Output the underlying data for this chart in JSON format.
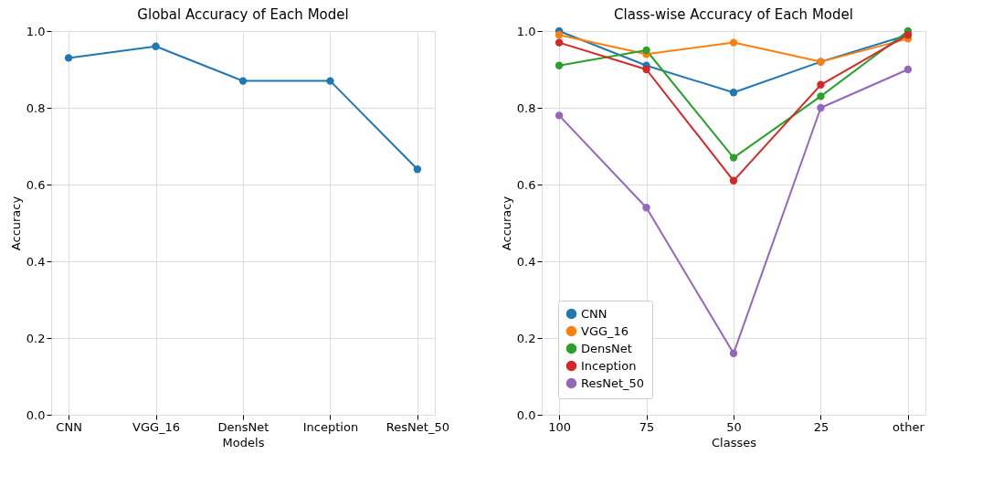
{
  "chart_data": [
    {
      "type": "line",
      "title": "Global Accuracy of Each Model",
      "xlabel": "Models",
      "ylabel": "Accuracy",
      "categories": [
        "CNN",
        "VGG_16",
        "DensNet",
        "Inception",
        "ResNet_50"
      ],
      "series": [
        {
          "color": "#1f77b4",
          "values": [
            0.93,
            0.96,
            0.87,
            0.87,
            0.64
          ]
        }
      ],
      "ylim": [
        0,
        1
      ],
      "yticks": [
        {
          "value": 0,
          "label": "0.0"
        },
        {
          "value": 0.2,
          "label": "0.2"
        },
        {
          "value": 0.4,
          "label": "0.4"
        },
        {
          "value": 0.6,
          "label": "0.6"
        },
        {
          "value": 0.8,
          "label": "0.8"
        },
        {
          "value": 1,
          "label": "1.0"
        }
      ],
      "grid": true,
      "marker": "circle",
      "line_style": "solid"
    },
    {
      "type": "line",
      "title": "Class-wise Accuracy of Each Model",
      "xlabel": "Classes",
      "ylabel": "Accuracy",
      "categories": [
        "100",
        "75",
        "50",
        "25",
        "other"
      ],
      "series": [
        {
          "name": "CNN",
          "color": "#1f77b4",
          "values": [
            1.0,
            0.91,
            0.84,
            0.92,
            0.99
          ]
        },
        {
          "name": "VGG_16",
          "color": "#ff7f0e",
          "values": [
            0.99,
            0.94,
            0.97,
            0.92,
            0.98
          ]
        },
        {
          "name": "DensNet",
          "color": "#2ca02c",
          "values": [
            0.91,
            0.95,
            0.67,
            0.83,
            1.0
          ]
        },
        {
          "name": "Inception",
          "color": "#d62728",
          "values": [
            0.97,
            0.9,
            0.61,
            0.86,
            0.99
          ]
        },
        {
          "name": "ResNet_50",
          "color": "#9467bd",
          "values": [
            0.78,
            0.54,
            0.16,
            0.8,
            0.9
          ]
        }
      ],
      "ylim": [
        0,
        1
      ],
      "yticks": [
        {
          "value": 0,
          "label": "0.0"
        },
        {
          "value": 0.2,
          "label": "0.2"
        },
        {
          "value": 0.4,
          "label": "0.4"
        },
        {
          "value": 0.6,
          "label": "0.6"
        },
        {
          "value": 0.8,
          "label": "0.8"
        },
        {
          "value": 1,
          "label": "1.0"
        }
      ],
      "grid": true,
      "legend": "bottom left",
      "marker": "circle",
      "line_style": "solid"
    }
  ]
}
